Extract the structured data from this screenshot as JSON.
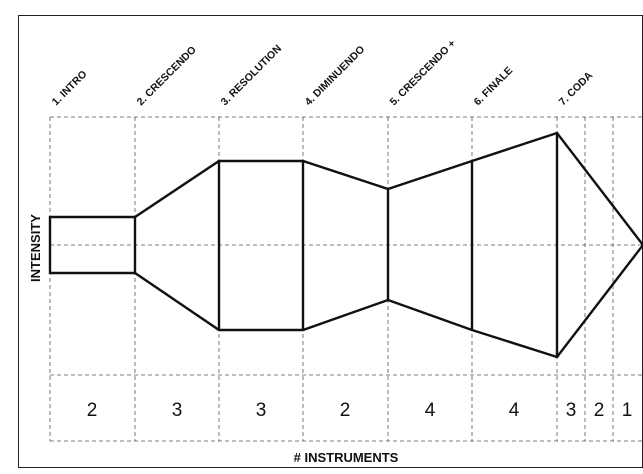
{
  "sections": [
    {
      "label": "1. INTRO",
      "instruments": "2",
      "intensity": 1
    },
    {
      "label": "2. CRESCENDO",
      "instruments": "3",
      "intensity": 3
    },
    {
      "label": "3. RESOLUTION",
      "instruments": "3",
      "intensity": 3
    },
    {
      "label": "4. DIMINUENDO",
      "instruments": "2",
      "intensity": 2
    },
    {
      "label": "5. CRESCENDO +",
      "instruments": "4",
      "intensity": 3.6
    },
    {
      "label": "6. FINALE",
      "instruments": "4",
      "intensity": 4
    },
    {
      "label": "7. CODA",
      "instruments": "3",
      "intensity": 0
    }
  ],
  "coda_tail_counts": [
    "2",
    "1"
  ],
  "y_axis_label": "INTENSITY",
  "x_axis_label": "# INSTRUMENTS"
}
